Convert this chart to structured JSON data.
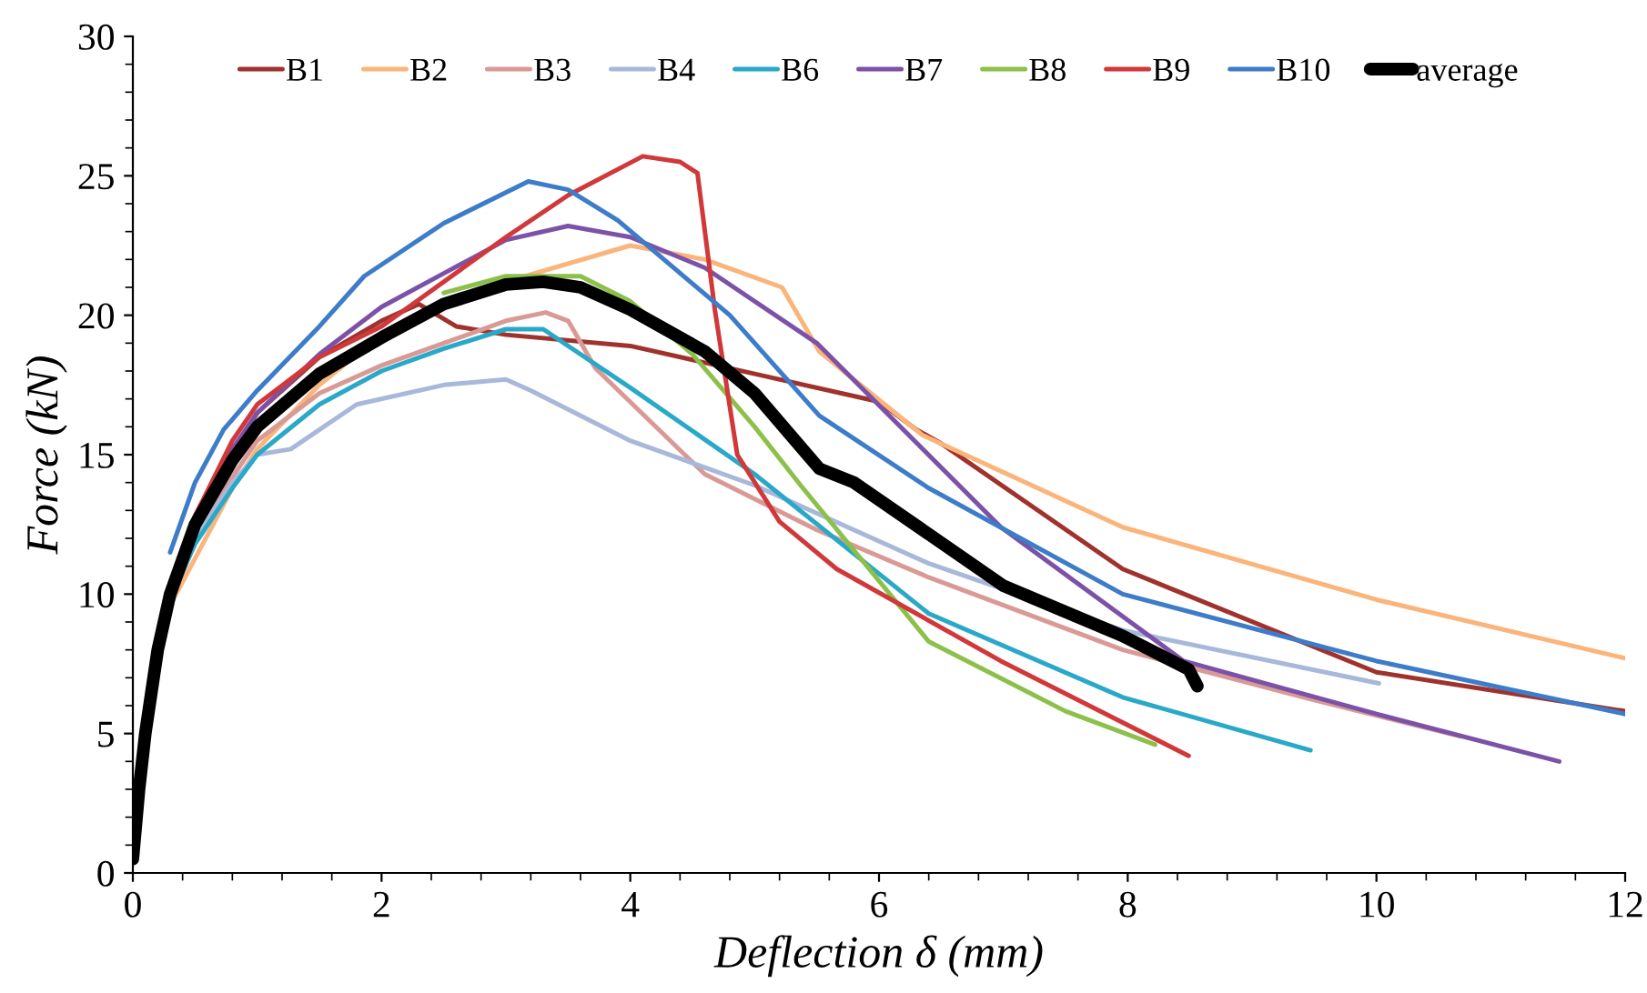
{
  "chart_data": {
    "type": "line",
    "xlabel": "Deflection δ (mm)",
    "ylabel": "Force (kN)",
    "xlim": [
      0,
      12
    ],
    "ylim": [
      0,
      30
    ],
    "xticks": [
      0,
      2,
      4,
      6,
      8,
      10,
      12
    ],
    "yticks": [
      0,
      5,
      10,
      15,
      20,
      25,
      30
    ],
    "grid": false,
    "legend": "top",
    "marker": "none",
    "line_style": "solid",
    "series": [
      {
        "name": "B1",
        "color": "#a0322d",
        "x": [
          0.3,
          0.5,
          0.8,
          1,
          1.5,
          2,
          2.3,
          2.6,
          3,
          4,
          5,
          6,
          6.3,
          6.5,
          7.96,
          10,
          12
        ],
        "values": [
          10,
          12.7,
          15,
          16.5,
          18.5,
          19.8,
          20.4,
          19.6,
          19.3,
          18.9,
          17.9,
          16.9,
          15.9,
          15.4,
          10.9,
          7.2,
          5.8
        ]
      },
      {
        "name": "B2",
        "color": "#fbb47a",
        "x": [
          0.3,
          0.8,
          1,
          1.5,
          2,
          3,
          4,
          4.6,
          5.22,
          5.52,
          6.35,
          7.96,
          10,
          12
        ],
        "values": [
          9.6,
          13.8,
          15.2,
          17.5,
          19.3,
          21.2,
          22.5,
          22,
          21,
          18.7,
          15.7,
          12.4,
          9.8,
          7.7
        ]
      },
      {
        "name": "B3",
        "color": "#d99a96",
        "x": [
          0.3,
          0.5,
          0.8,
          1,
          1.5,
          2,
          2.5,
          3,
          3.32,
          3.5,
          3.72,
          4.6,
          5.5,
          6.4,
          7.96,
          9.5,
          10.68
        ],
        "values": [
          9.8,
          12,
          14.2,
          15.5,
          17.2,
          18.2,
          19,
          19.8,
          20.1,
          19.8,
          18.1,
          14.3,
          12.3,
          10.6,
          8,
          6.2,
          4.9
        ]
      },
      {
        "name": "B4",
        "color": "#a8b8da",
        "x": [
          0.3,
          0.5,
          0.8,
          1,
          1.27,
          1.8,
          2.5,
          3,
          3.2,
          4,
          5,
          6.4,
          7.96,
          10.02
        ],
        "values": [
          9.8,
          12,
          14,
          15,
          15.2,
          16.8,
          17.5,
          17.7,
          17.3,
          15.5,
          13.9,
          11.1,
          8.7,
          6.8
        ]
      },
      {
        "name": "B6",
        "color": "#2aa8c8",
        "x": [
          0.3,
          0.5,
          0.8,
          1,
          1.5,
          2,
          2.5,
          3,
          3.3,
          4,
          5,
          6.4,
          7.96,
          9.47
        ],
        "values": [
          9.8,
          11.8,
          13.8,
          15,
          16.8,
          18,
          18.8,
          19.5,
          19.5,
          17.4,
          14.3,
          9.3,
          6.3,
          4.4
        ]
      },
      {
        "name": "B7",
        "color": "#7c52a8",
        "x": [
          0.3,
          0.5,
          0.8,
          1,
          1.5,
          2,
          2.5,
          3,
          3.5,
          4,
          4.6,
          5.5,
          6.98,
          8.45,
          10,
          11.47
        ],
        "values": [
          10.2,
          12.8,
          15.2,
          16.5,
          18.6,
          20.3,
          21.5,
          22.7,
          23.2,
          22.8,
          21.7,
          19,
          12.4,
          7.6,
          5.7,
          4
        ]
      },
      {
        "name": "B8",
        "color": "#8cc04a",
        "x": [
          2.5,
          3,
          3.6,
          4,
          4.5,
          5,
          5.37,
          6.4,
          7.5,
          8.22
        ],
        "values": [
          20.8,
          21.4,
          21.4,
          20.5,
          18.6,
          16,
          13.9,
          8.3,
          5.8,
          4.6
        ]
      },
      {
        "name": "B9",
        "color": "#d0383a",
        "x": [
          0.3,
          0.5,
          0.8,
          1,
          1.5,
          2,
          3,
          3.5,
          4.1,
          4.4,
          4.54,
          4.68,
          4.86,
          5.2,
          5.66,
          6.98,
          8.49
        ],
        "values": [
          10.2,
          12.8,
          15.5,
          16.8,
          18.5,
          19.6,
          22.8,
          24.3,
          25.7,
          25.5,
          25.1,
          20.2,
          15,
          12.6,
          10.9,
          7.6,
          4.2
        ]
      },
      {
        "name": "B10",
        "color": "#3d7cc8",
        "x": [
          0.3,
          0.5,
          0.73,
          1,
          1.5,
          1.86,
          2.5,
          3.18,
          3.5,
          3.9,
          4.8,
          5.52,
          6.4,
          7.96,
          10,
          12
        ],
        "values": [
          11.5,
          14,
          15.9,
          17.3,
          19.6,
          21.4,
          23.3,
          24.8,
          24.5,
          23.4,
          20,
          16.4,
          13.8,
          10,
          7.6,
          5.7
        ]
      },
      {
        "name": "average",
        "color": "#000000",
        "x": [
          0,
          0.05,
          0.1,
          0.2,
          0.3,
          0.5,
          0.8,
          1,
          1.5,
          2,
          2.5,
          3,
          3.3,
          3.6,
          4,
          4.6,
          5,
          5.52,
          5.8,
          7,
          7.96,
          8.49,
          8.56
        ],
        "values": [
          0.5,
          3,
          5,
          8,
          10,
          12.5,
          14.8,
          16,
          17.9,
          19.2,
          20.4,
          21.1,
          21.2,
          21,
          20.2,
          18.7,
          17.2,
          14.5,
          14,
          10.3,
          8.5,
          7.3,
          6.7
        ]
      }
    ]
  }
}
